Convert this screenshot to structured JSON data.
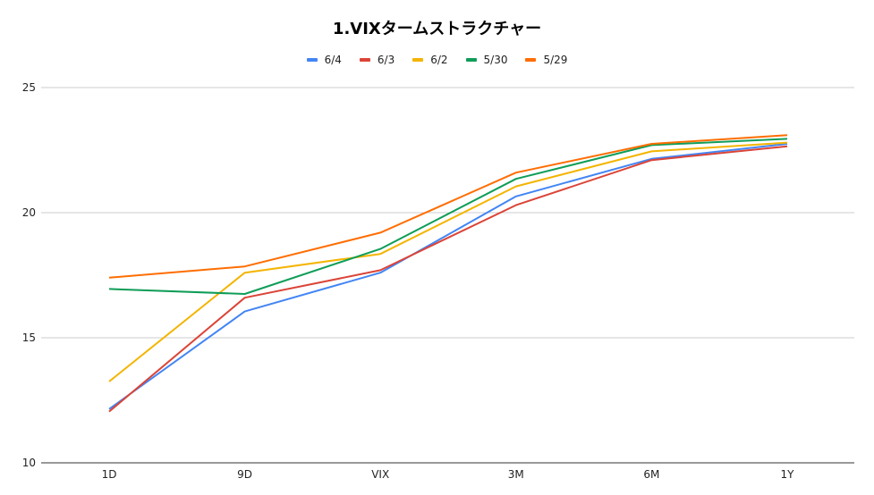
{
  "chart_data": {
    "type": "line",
    "title": "1.VIXタームストラクチャー",
    "xlabel": "",
    "ylabel": "",
    "categories": [
      "1D",
      "9D",
      "VIX",
      "3M",
      "6M",
      "1Y"
    ],
    "ylim": [
      10,
      25
    ],
    "yticks": [
      "25",
      "20",
      "15",
      "10"
    ],
    "grid": true,
    "legend_position": "top",
    "series": [
      {
        "name": "6/4",
        "color": "#4285f4",
        "values": [
          12.15,
          16.05,
          17.6,
          20.65,
          22.15,
          22.75
        ]
      },
      {
        "name": "6/3",
        "color": "#db4437",
        "values": [
          12.05,
          16.6,
          17.7,
          20.3,
          22.1,
          22.65
        ]
      },
      {
        "name": "6/2",
        "color": "#f4b400",
        "values": [
          13.25,
          17.6,
          18.35,
          21.05,
          22.45,
          22.8
        ]
      },
      {
        "name": "5/30",
        "color": "#0f9d58",
        "values": [
          16.95,
          16.75,
          18.55,
          21.35,
          22.7,
          22.95
        ]
      },
      {
        "name": "5/29",
        "color": "#ff6d01",
        "values": [
          17.4,
          17.85,
          19.2,
          21.6,
          22.75,
          23.1
        ]
      }
    ]
  }
}
